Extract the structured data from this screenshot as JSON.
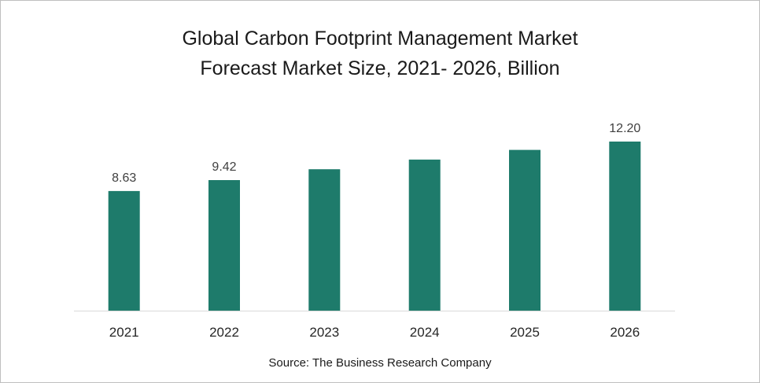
{
  "chart_data": {
    "type": "bar",
    "title_lines": [
      "Global Carbon Footprint Management Market",
      "Forecast Market Size, 2021- 2026, Billion"
    ],
    "categories": [
      "2021",
      "2022",
      "2023",
      "2024",
      "2025",
      "2026"
    ],
    "values": [
      8.63,
      9.42,
      10.2,
      10.9,
      11.6,
      12.2
    ],
    "data_labels": [
      "8.63",
      "9.42",
      "",
      "",
      "",
      "12.20"
    ],
    "ylim": [
      0,
      12.2
    ],
    "grid": false,
    "legend": "none",
    "bar_color": "#1e7b6b",
    "source": "Source: The Business Research Company"
  }
}
